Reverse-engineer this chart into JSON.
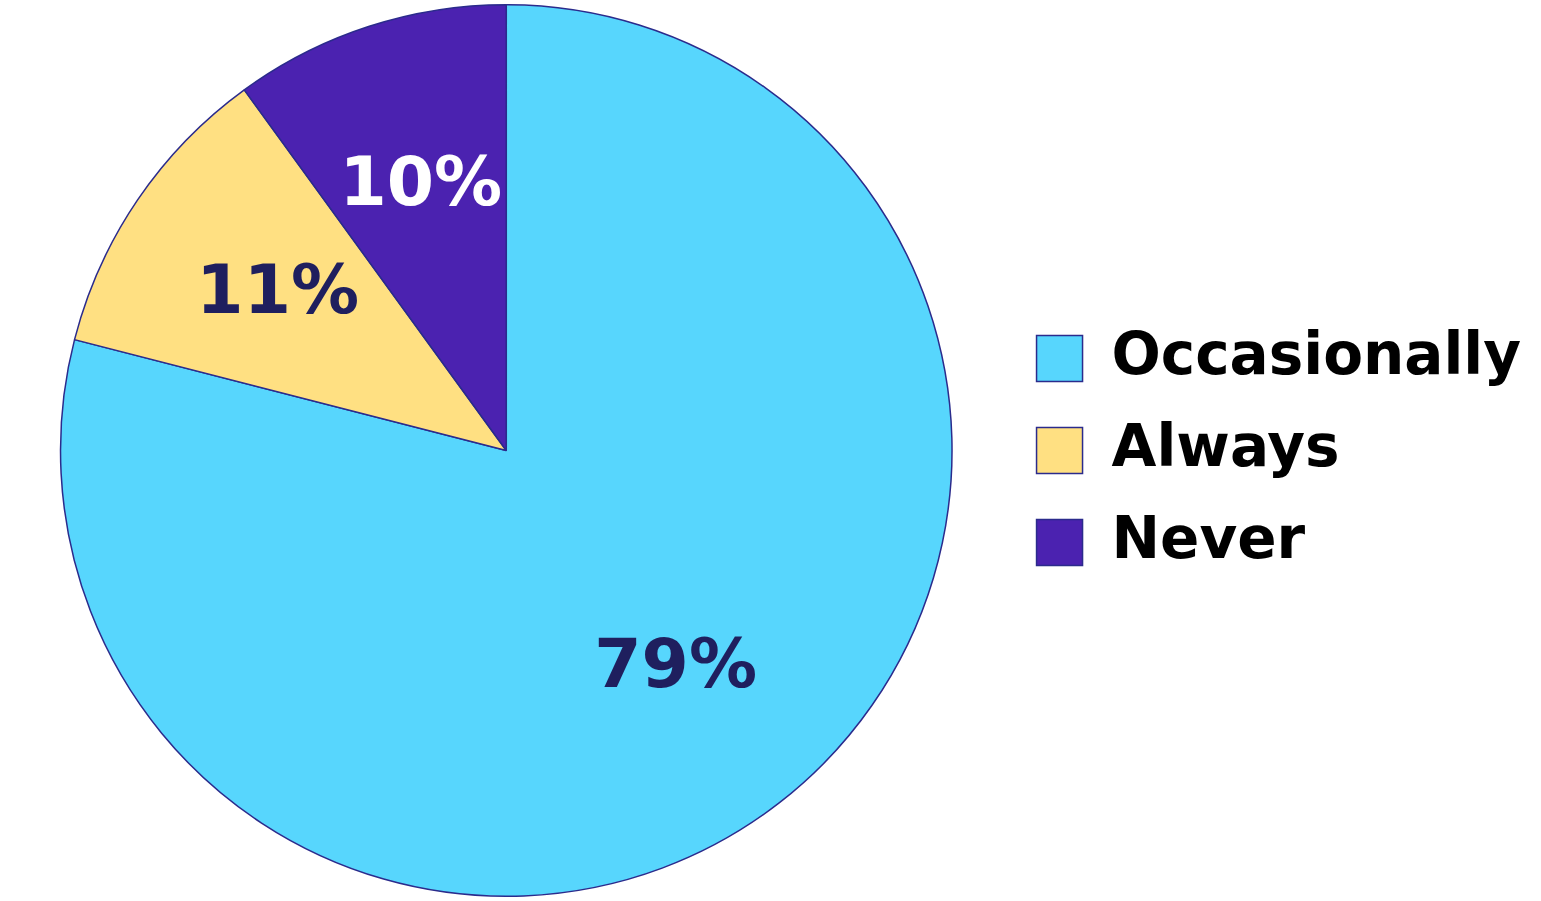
{
  "chart_data": {
    "type": "pie",
    "categories": [
      "Occasionally",
      "Always",
      "Never"
    ],
    "values": [
      79,
      11,
      10
    ],
    "colors": [
      "#57d6fd",
      "#ffe082",
      "#4b22b0"
    ],
    "value_labels": [
      "79%",
      "11%",
      "10%"
    ],
    "legend": "right"
  }
}
